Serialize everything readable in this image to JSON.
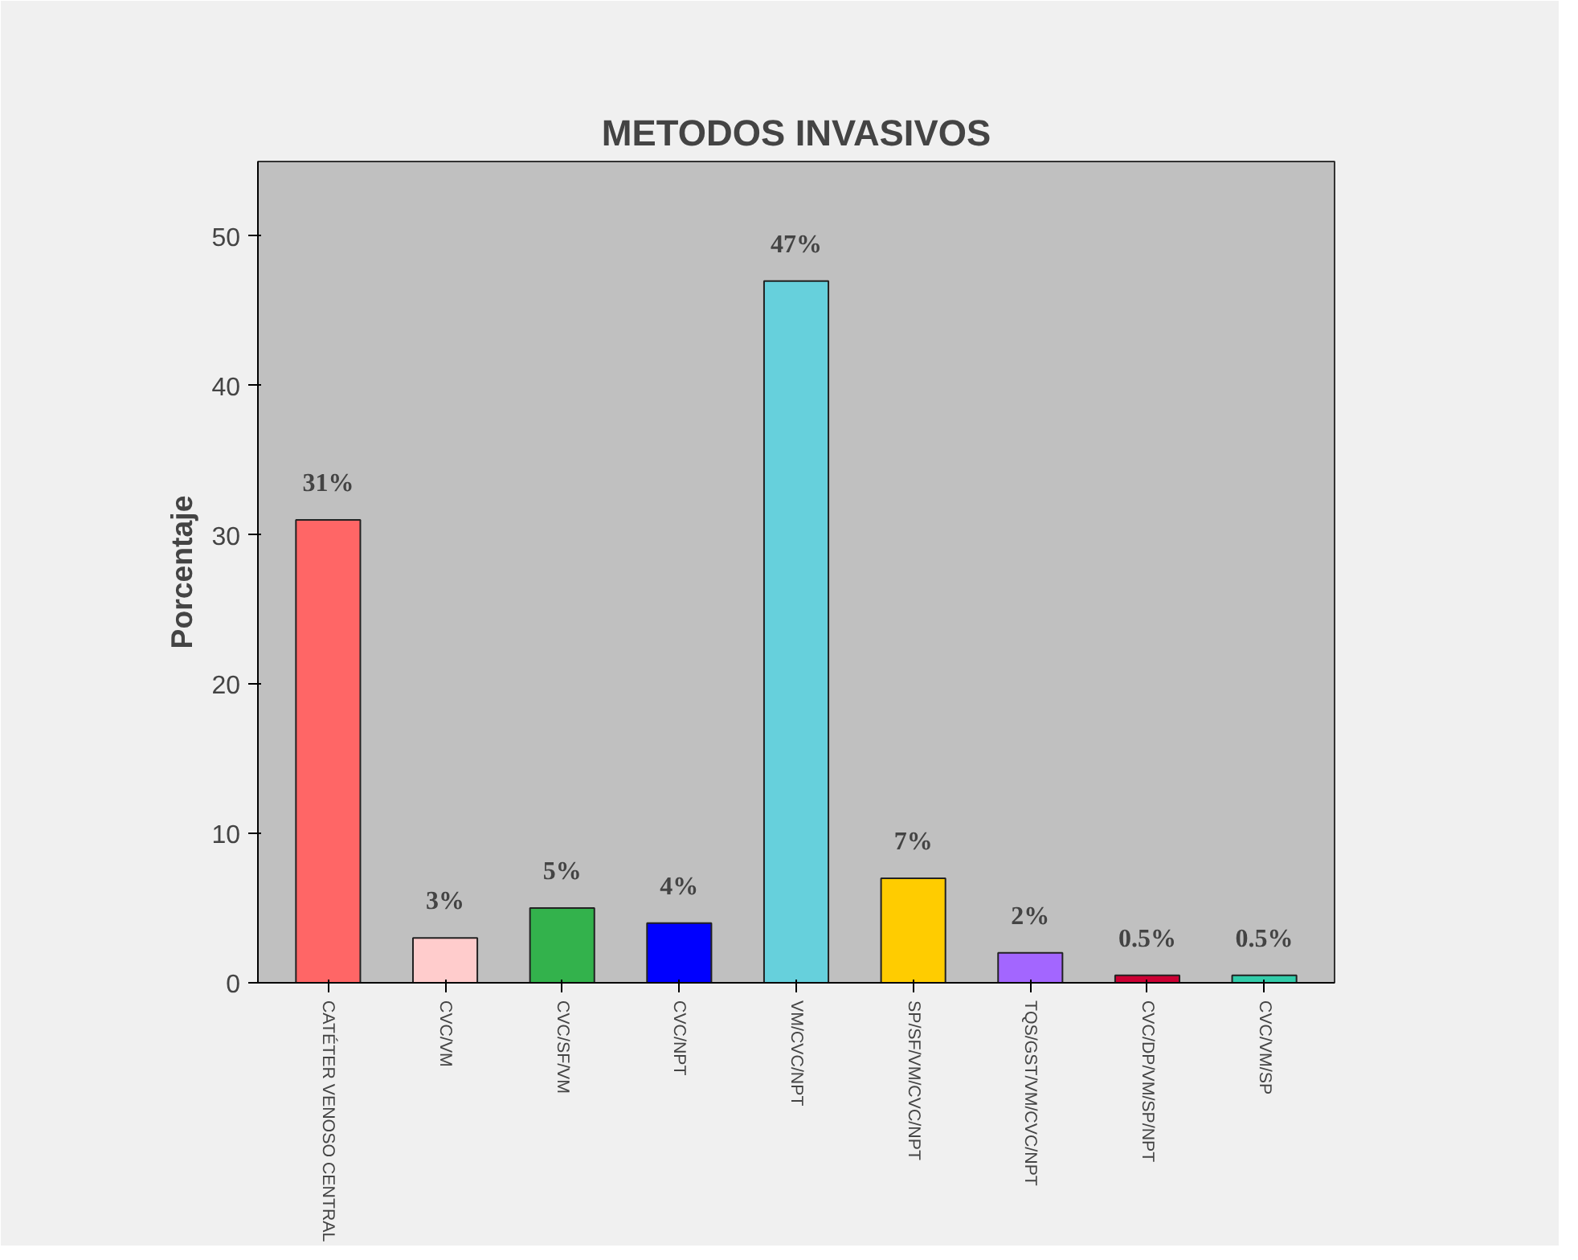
{
  "chart_data": {
    "type": "bar",
    "title": "METODOS INVASIVOS",
    "ylabel": "Porcentaje",
    "categories": [
      "CATÉTER VENOSO CENTRAL",
      "CVC/VM",
      "CVC/SF/VM",
      "CVC/NPT",
      "VM/CVC/NPT",
      "SP/SF/VM/CVC/NPT",
      "TQS/GST/VM/CVC/NPT",
      "CVC/DP/VM/SP/NPT",
      "CVC/VM/SP"
    ],
    "values": [
      31,
      3,
      5,
      4,
      47,
      7,
      2,
      0.5,
      0.5
    ],
    "value_labels": [
      "31%",
      "3%",
      "5%",
      "4%",
      "47%",
      "7%",
      "2%",
      "0.5%",
      "0.5%"
    ],
    "colors": [
      "#ff6666",
      "#ffcccc",
      "#33b24c",
      "#0000ff",
      "#66d0dc",
      "#ffcc00",
      "#a366ff",
      "#cc0033",
      "#33ccaa"
    ],
    "ylim": [
      0,
      55
    ],
    "yticks": [
      0,
      10,
      20,
      30,
      40,
      50
    ],
    "grid": false
  }
}
